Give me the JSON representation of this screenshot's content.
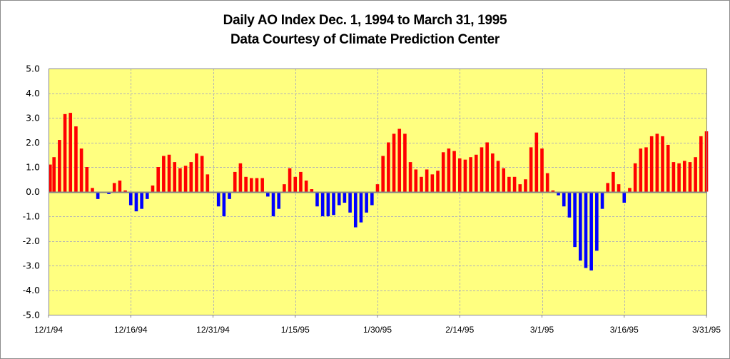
{
  "chart_data": {
    "type": "bar",
    "title": "Daily AO Index Dec. 1, 1994 to March 31, 1995",
    "subtitle": "Data Courtesy of Climate Prediction Center",
    "xlabel": "",
    "ylabel": "",
    "ylim": [
      -5.0,
      5.0
    ],
    "yticks": [
      "5.0",
      "4.0",
      "3.0",
      "2.0",
      "1.0",
      "0.0",
      "-1.0",
      "-2.0",
      "-3.0",
      "-4.0",
      "-5.0"
    ],
    "ytick_values": [
      5,
      4,
      3,
      2,
      1,
      0,
      -1,
      -2,
      -3,
      -4,
      -5
    ],
    "xtick_labels": [
      "12/1/94",
      "12/16/94",
      "12/31/94",
      "1/15/95",
      "1/30/95",
      "2/14/95",
      "3/1/95",
      "3/16/95",
      "3/31/95"
    ],
    "xtick_day_index": [
      0,
      15,
      30,
      45,
      60,
      75,
      90,
      105,
      120
    ],
    "grid": true,
    "colors": {
      "positive": "#ff0000",
      "negative": "#0000ff",
      "plot_bg": "#ffff80",
      "grid": "#b4b4b4",
      "axis": "#868686"
    },
    "start_date": "12/1/94",
    "end_date": "3/31/95",
    "values": [
      1.1,
      1.4,
      2.1,
      3.15,
      3.2,
      2.65,
      1.75,
      1.0,
      0.15,
      -0.3,
      0,
      -0.1,
      0.35,
      0.45,
      0.05,
      -0.55,
      -0.8,
      -0.7,
      -0.3,
      0.25,
      1.0,
      1.45,
      1.5,
      1.2,
      0.95,
      1.05,
      1.2,
      1.55,
      1.45,
      0.7,
      0,
      -0.6,
      -1.0,
      -0.3,
      0.8,
      1.15,
      0.6,
      0.55,
      0.55,
      0.55,
      -0.2,
      -1.0,
      -0.7,
      0.3,
      0.95,
      0.6,
      0.8,
      0.45,
      0.1,
      -0.6,
      -1.0,
      -1.0,
      -0.95,
      -0.55,
      -0.45,
      -0.85,
      -1.45,
      -1.25,
      -0.85,
      -0.55,
      0.3,
      1.45,
      2.0,
      2.35,
      2.55,
      2.35,
      1.2,
      0.9,
      0.6,
      0.9,
      0.7,
      0.85,
      1.6,
      1.75,
      1.65,
      1.35,
      1.3,
      1.4,
      1.5,
      1.8,
      2.0,
      1.55,
      1.25,
      0.95,
      0.6,
      0.6,
      0.3,
      0.5,
      1.8,
      2.4,
      1.75,
      0.75,
      0.05,
      -0.15,
      -0.6,
      -1.05,
      -2.25,
      -2.8,
      -3.1,
      -3.2,
      -2.4,
      -0.7,
      0.35,
      0.8,
      0.3,
      -0.45,
      0.15,
      1.15,
      1.75,
      1.8,
      2.25,
      2.35,
      2.25,
      1.9,
      1.2,
      1.15,
      1.25,
      1.2,
      1.4,
      2.25,
      2.45
    ]
  }
}
